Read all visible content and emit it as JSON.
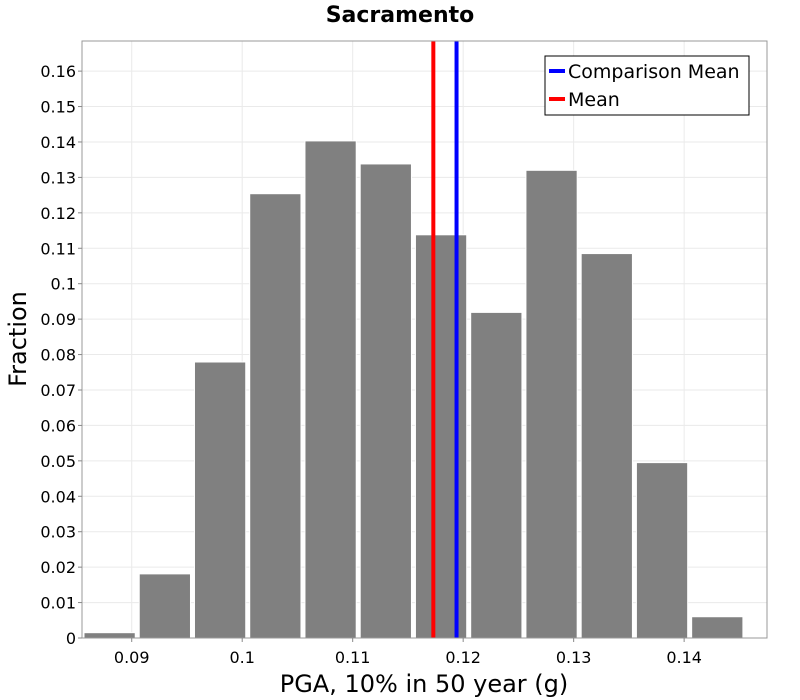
{
  "chart_data": {
    "type": "bar",
    "title": "Sacramento",
    "xlabel": "PGA, 10% in 50 year (g)",
    "ylabel": "Fraction",
    "xlim": [
      0.0855,
      0.1475
    ],
    "ylim": [
      0,
      0.1685
    ],
    "grid": true,
    "legend_position": "top-right",
    "x_ticks": [
      {
        "value": 0.09,
        "label": "0.09"
      },
      {
        "value": 0.1,
        "label": "0.1"
      },
      {
        "value": 0.11,
        "label": "0.11"
      },
      {
        "value": 0.12,
        "label": "0.12"
      },
      {
        "value": 0.13,
        "label": "0.13"
      },
      {
        "value": 0.14,
        "label": "0.14"
      }
    ],
    "y_ticks": [
      {
        "value": 0,
        "label": "0"
      },
      {
        "value": 0.01,
        "label": "0.01"
      },
      {
        "value": 0.02,
        "label": "0.02"
      },
      {
        "value": 0.03,
        "label": "0.03"
      },
      {
        "value": 0.04,
        "label": "0.04"
      },
      {
        "value": 0.05,
        "label": "0.05"
      },
      {
        "value": 0.06,
        "label": "0.06"
      },
      {
        "value": 0.07,
        "label": "0.07"
      },
      {
        "value": 0.08,
        "label": "0.08"
      },
      {
        "value": 0.09,
        "label": "0.09"
      },
      {
        "value": 0.1,
        "label": "0.1"
      },
      {
        "value": 0.11,
        "label": "0.11"
      },
      {
        "value": 0.12,
        "label": "0.12"
      },
      {
        "value": 0.13,
        "label": "0.13"
      },
      {
        "value": 0.14,
        "label": "0.14"
      },
      {
        "value": 0.15,
        "label": "0.15"
      },
      {
        "value": 0.16,
        "label": "0.16"
      }
    ],
    "bar_color": "#808080",
    "bins": [
      {
        "center": 0.088,
        "value": 0.0015
      },
      {
        "center": 0.093,
        "value": 0.0181
      },
      {
        "center": 0.098,
        "value": 0.0779
      },
      {
        "center": 0.103,
        "value": 0.1254
      },
      {
        "center": 0.108,
        "value": 0.1403
      },
      {
        "center": 0.113,
        "value": 0.1338
      },
      {
        "center": 0.118,
        "value": 0.1138
      },
      {
        "center": 0.123,
        "value": 0.0919
      },
      {
        "center": 0.128,
        "value": 0.132
      },
      {
        "center": 0.133,
        "value": 0.1085
      },
      {
        "center": 0.138,
        "value": 0.0495
      },
      {
        "center": 0.143,
        "value": 0.006
      }
    ],
    "bin_width": 0.005,
    "lines": [
      {
        "name": "Comparison Mean",
        "x": 0.1194,
        "color": "#0000ff"
      },
      {
        "name": "Mean",
        "x": 0.1173,
        "color": "#ff0000"
      }
    ]
  }
}
